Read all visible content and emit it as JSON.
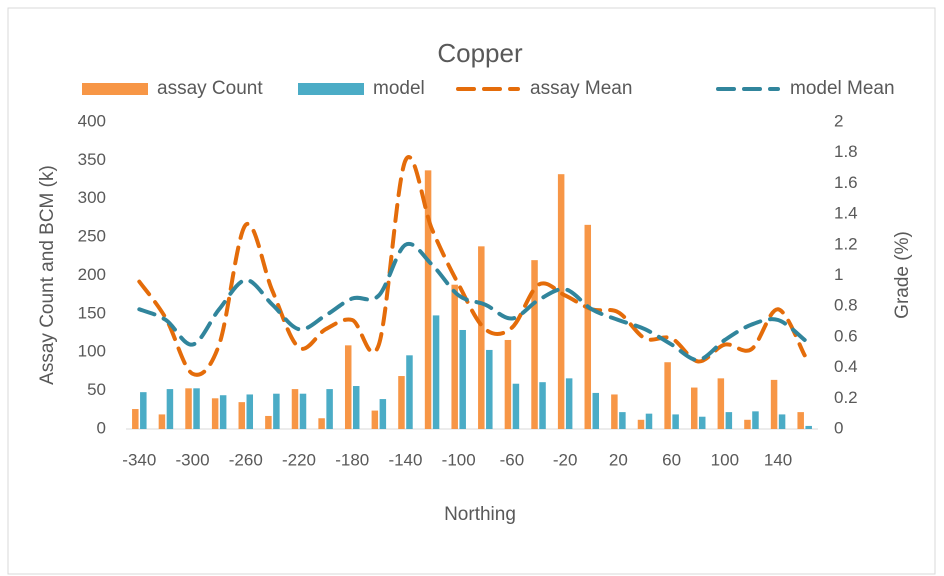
{
  "chart_data": {
    "type": "bar",
    "title": "Copper",
    "x_label": "Northing",
    "y_label": "Assay Count and BCM (k)",
    "y2_label": "Grade (%)",
    "categories": [
      -340,
      null,
      -300,
      null,
      -260,
      null,
      -220,
      null,
      -180,
      null,
      -140,
      null,
      -100,
      null,
      -60,
      null,
      -20,
      null,
      20,
      null,
      60,
      null,
      100,
      null,
      140,
      null
    ],
    "series": [
      {
        "name": "assay Count",
        "type": "bar",
        "color": "#f79646",
        "values": [
          26,
          19,
          53,
          40,
          35,
          17,
          52,
          14,
          109,
          24,
          69,
          337,
          188,
          238,
          116,
          220,
          332,
          266,
          45,
          12,
          87,
          54,
          66,
          12,
          64,
          22
        ]
      },
      {
        "name": "model",
        "type": "bar",
        "color": "#4bacc6",
        "values": [
          48,
          52,
          53,
          44,
          45,
          46,
          46,
          52,
          56,
          39,
          96,
          148,
          129,
          103,
          59,
          61,
          66,
          47,
          22,
          20,
          19,
          16,
          22,
          23,
          19,
          4
        ]
      },
      {
        "name": "assay Mean",
        "type": "line",
        "axis": "y2",
        "color": "#e46c0a",
        "values": [
          0.96,
          0.72,
          0.36,
          0.55,
          1.33,
          0.9,
          0.53,
          0.65,
          0.71,
          0.55,
          1.75,
          1.3,
          0.94,
          0.65,
          0.66,
          0.94,
          0.87,
          0.78,
          0.76,
          0.59,
          0.59,
          0.44,
          0.55,
          0.52,
          0.78,
          0.48
        ]
      },
      {
        "name": "model Mean",
        "type": "line",
        "axis": "y2",
        "color": "#31859c",
        "values": [
          0.78,
          0.71,
          0.55,
          0.78,
          0.97,
          0.81,
          0.65,
          0.74,
          0.85,
          0.87,
          1.2,
          1.07,
          0.87,
          0.81,
          0.72,
          0.84,
          0.91,
          0.78,
          0.71,
          0.65,
          0.55,
          0.45,
          0.58,
          0.68,
          0.71,
          0.58
        ]
      }
    ],
    "ylim": [
      0,
      400
    ],
    "yticks": [
      0,
      50,
      100,
      150,
      200,
      250,
      300,
      350,
      400
    ],
    "y2lim": [
      0,
      2
    ],
    "y2ticks": [
      0,
      0.2,
      0.4,
      0.6,
      0.8,
      1,
      1.2,
      1.4,
      1.6,
      1.8,
      2
    ],
    "grid": false,
    "legend": "top"
  }
}
